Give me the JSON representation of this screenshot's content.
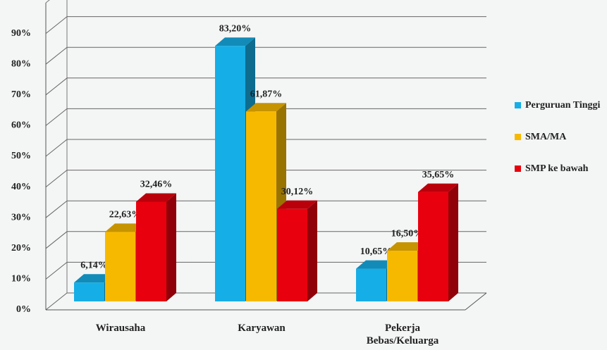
{
  "chart_data": {
    "type": "bar",
    "categories": [
      "Wirausaha",
      "Karyawan",
      "Pekerja Bebas/Keluarga"
    ],
    "series": [
      {
        "name": "Perguruan Tinggi",
        "color": "#16aee6",
        "values": [
          6.14,
          83.2,
          10.65
        ],
        "value_labels": [
          "6,14%",
          "83,20%",
          "10,65%"
        ]
      },
      {
        "name": "SMA/MA",
        "color": "#f7b900",
        "values": [
          22.63,
          61.87,
          16.5
        ],
        "value_labels": [
          "22,63%",
          "61,87%",
          "16,50%"
        ]
      },
      {
        "name": "SMP ke bawah",
        "color": "#e8000e",
        "values": [
          32.46,
          30.12,
          35.65
        ],
        "value_labels": [
          "32,46%",
          "30,12%",
          "35,65%"
        ]
      }
    ],
    "ylim": [
      0,
      100
    ],
    "yticks": [
      {
        "value": 0,
        "label": "0%"
      },
      {
        "value": 10,
        "label": "10%"
      },
      {
        "value": 20,
        "label": "20%"
      },
      {
        "value": 30,
        "label": "30%"
      },
      {
        "value": 40,
        "label": "40%"
      },
      {
        "value": 50,
        "label": "50%"
      },
      {
        "value": 60,
        "label": "60%"
      },
      {
        "value": 70,
        "label": "70%"
      },
      {
        "value": 80,
        "label": "80%"
      },
      {
        "value": 90,
        "label": "90%"
      }
    ],
    "grid": true,
    "legend": "right"
  }
}
